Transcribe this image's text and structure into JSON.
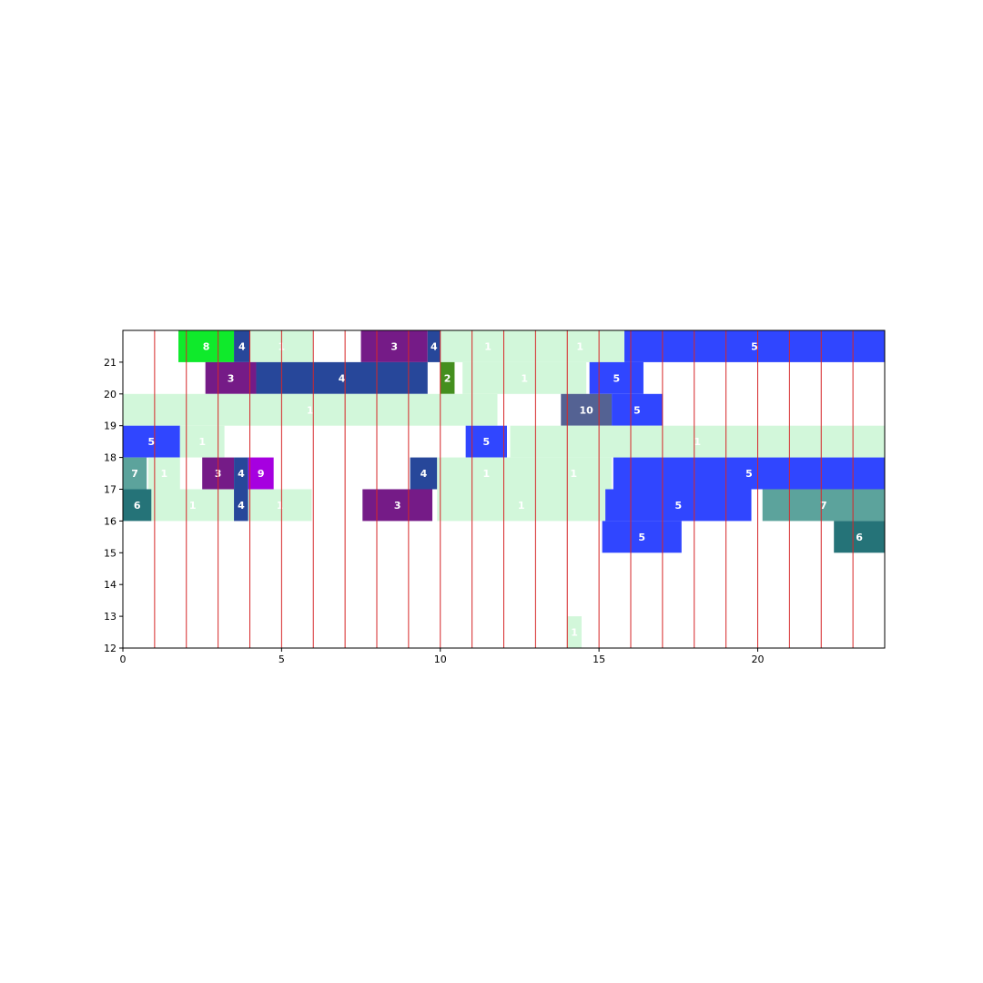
{
  "chart_data": {
    "type": "timeline",
    "title": "",
    "xlabel": "",
    "ylabel": "",
    "xlim": [
      0,
      24
    ],
    "ylim": [
      12,
      22
    ],
    "x_ticks": [
      0,
      5,
      10,
      15,
      20
    ],
    "y_ticks": [
      12,
      13,
      14,
      15,
      16,
      17,
      18,
      19,
      20,
      21
    ],
    "vertical_lines": [
      1,
      2,
      3,
      4,
      5,
      6,
      7,
      8,
      9,
      10,
      11,
      12,
      13,
      14,
      15,
      16,
      17,
      18,
      19,
      20,
      21,
      22,
      23
    ],
    "vertical_line_color": "#d62728",
    "colors": {
      "1": "#d2f7da",
      "2": "#448f1e",
      "3": "#751b87",
      "4": "#27479a",
      "5": "#3046ff",
      "6": "#257378",
      "7": "#5ca39c",
      "8": "#0fea2b",
      "9": "#a600e0",
      "10": "#546293"
    },
    "bars": [
      {
        "label": "8",
        "start": 1.75,
        "end": 3.5,
        "bottom": 21,
        "top": 22
      },
      {
        "label": "4",
        "start": 3.5,
        "end": 4.0,
        "bottom": 21,
        "top": 22
      },
      {
        "label": "1",
        "start": 4.0,
        "end": 6.0,
        "bottom": 21,
        "top": 22
      },
      {
        "label": "3",
        "start": 7.5,
        "end": 9.6,
        "bottom": 21,
        "top": 22
      },
      {
        "label": "4",
        "start": 9.6,
        "end": 10.0,
        "bottom": 21,
        "top": 22
      },
      {
        "label": "1",
        "start": 10.0,
        "end": 13.0,
        "bottom": 21,
        "top": 22
      },
      {
        "label": "1",
        "start": 13.0,
        "end": 15.8,
        "bottom": 21,
        "top": 22
      },
      {
        "label": "5",
        "start": 15.8,
        "end": 24.0,
        "bottom": 21,
        "top": 22
      },
      {
        "label": "3",
        "start": 2.6,
        "end": 4.2,
        "bottom": 20,
        "top": 21
      },
      {
        "label": "4",
        "start": 4.2,
        "end": 9.6,
        "bottom": 20,
        "top": 21
      },
      {
        "label": "2",
        "start": 10.0,
        "end": 10.45,
        "bottom": 20,
        "top": 21
      },
      {
        "label": "1",
        "start": 10.7,
        "end": 14.6,
        "bottom": 20,
        "top": 21
      },
      {
        "label": "5",
        "start": 14.7,
        "end": 16.4,
        "bottom": 20,
        "top": 21
      },
      {
        "label": "1",
        "start": 0.0,
        "end": 11.8,
        "bottom": 19,
        "top": 20
      },
      {
        "label": "10",
        "start": 13.8,
        "end": 15.4,
        "bottom": 19,
        "top": 20
      },
      {
        "label": "5",
        "start": 15.4,
        "end": 17.0,
        "bottom": 19,
        "top": 20
      },
      {
        "label": "5",
        "start": 0.0,
        "end": 1.8,
        "bottom": 18,
        "top": 19
      },
      {
        "label": "1",
        "start": 1.8,
        "end": 3.2,
        "bottom": 18,
        "top": 19
      },
      {
        "label": "5",
        "start": 10.8,
        "end": 12.1,
        "bottom": 18,
        "top": 19
      },
      {
        "label": "1",
        "start": 12.2,
        "end": 24.0,
        "bottom": 18,
        "top": 19
      },
      {
        "label": "7",
        "start": 0.0,
        "end": 0.75,
        "bottom": 17,
        "top": 18
      },
      {
        "label": "1",
        "start": 0.8,
        "end": 1.8,
        "bottom": 17,
        "top": 18
      },
      {
        "label": "3",
        "start": 2.5,
        "end": 3.5,
        "bottom": 17,
        "top": 18
      },
      {
        "label": "4",
        "start": 3.5,
        "end": 3.95,
        "bottom": 17,
        "top": 18
      },
      {
        "label": "9",
        "start": 3.95,
        "end": 4.75,
        "bottom": 17,
        "top": 18
      },
      {
        "label": "4",
        "start": 9.05,
        "end": 9.9,
        "bottom": 17,
        "top": 18
      },
      {
        "label": "1",
        "start": 9.9,
        "end": 13.0,
        "bottom": 17,
        "top": 18
      },
      {
        "label": "1",
        "start": 13.0,
        "end": 15.4,
        "bottom": 17,
        "top": 18
      },
      {
        "label": "5",
        "start": 15.45,
        "end": 24.0,
        "bottom": 17,
        "top": 18
      },
      {
        "label": "6",
        "start": 0.0,
        "end": 0.9,
        "bottom": 16,
        "top": 17
      },
      {
        "label": "1",
        "start": 0.9,
        "end": 3.5,
        "bottom": 16,
        "top": 17
      },
      {
        "label": "4",
        "start": 3.5,
        "end": 3.95,
        "bottom": 16,
        "top": 17
      },
      {
        "label": "1",
        "start": 3.95,
        "end": 5.95,
        "bottom": 16,
        "top": 17
      },
      {
        "label": "3",
        "start": 7.55,
        "end": 9.75,
        "bottom": 16,
        "top": 17
      },
      {
        "label": "1",
        "start": 9.9,
        "end": 15.2,
        "bottom": 16,
        "top": 17
      },
      {
        "label": "5",
        "start": 15.2,
        "end": 19.8,
        "bottom": 16,
        "top": 17
      },
      {
        "label": "7",
        "start": 20.15,
        "end": 24.0,
        "bottom": 16,
        "top": 17
      },
      {
        "label": "5",
        "start": 15.1,
        "end": 17.6,
        "bottom": 15,
        "top": 16
      },
      {
        "label": "6",
        "start": 22.4,
        "end": 24.0,
        "bottom": 15,
        "top": 16
      },
      {
        "label": "1",
        "start": 14.0,
        "end": 14.45,
        "bottom": 12,
        "top": 13
      }
    ]
  }
}
